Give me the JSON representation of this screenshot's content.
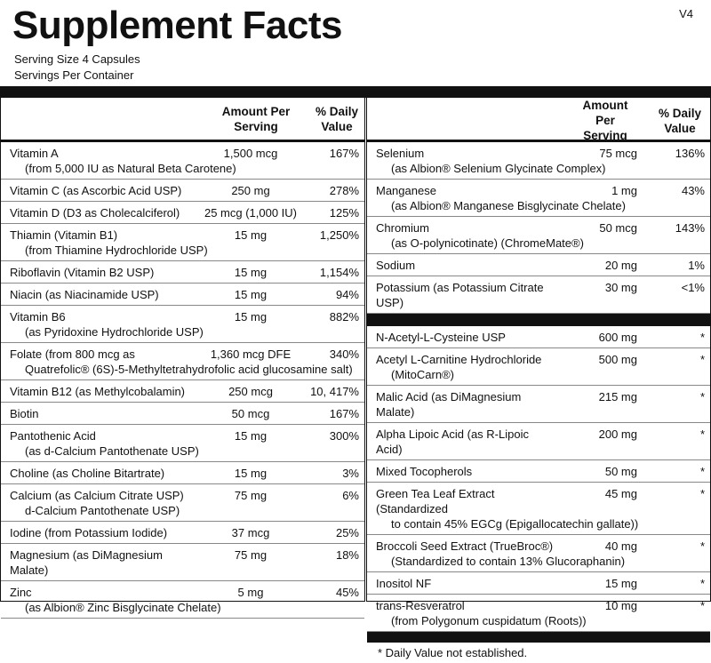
{
  "header": {
    "title": "Supplement Facts",
    "version": "V4",
    "serving_size": "Serving Size  4 Capsules",
    "servings_per_container": "Servings Per Container"
  },
  "left": {
    "columns": {
      "amount": "Amount Per Serving",
      "dv": "% Daily Value"
    },
    "rows": [
      {
        "name": "Vitamin A",
        "detail": "(from 5,000 IU as Natural Beta Carotene)",
        "amount": "1,500 mcg",
        "dv": "167%"
      },
      {
        "name": "Vitamin C (as Ascorbic Acid USP)",
        "amount": "250 mg",
        "dv": "278%"
      },
      {
        "name": "Vitamin D (D3 as Cholecalciferol)",
        "amount": "25 mcg (1,000 IU)",
        "dv": "125%"
      },
      {
        "name": "Thiamin (Vitamin B1)",
        "detail": "(from Thiamine Hydrochloride USP)",
        "amount": "15 mg",
        "dv": "1,250%"
      },
      {
        "name": "Riboflavin (Vitamin B2 USP)",
        "amount": "15 mg",
        "dv": "1,154%"
      },
      {
        "name": "Niacin (as Niacinamide USP)",
        "amount": "15 mg",
        "dv": "94%"
      },
      {
        "name": "Vitamin B6",
        "detail": "(as Pyridoxine Hydrochloride USP)",
        "amount": "15 mg",
        "dv": "882%"
      },
      {
        "name": "Folate (from 800 mcg as",
        "detail": "Quatrefolic® (6S)-5-Methyltetrahydrofolic acid glucosamine salt)",
        "amount": "1,360 mcg DFE",
        "dv": "340%"
      },
      {
        "name": "Vitamin B12 (as Methylcobalamin)",
        "amount": "250 mcg",
        "dv": "10, 417%"
      },
      {
        "name": "Biotin",
        "amount": "50 mcg",
        "dv": "167%"
      },
      {
        "name": "Pantothenic Acid",
        "detail": "(as d-Calcium Pantothenate USP)",
        "amount": "15 mg",
        "dv": "300%"
      },
      {
        "name": "Choline (as Choline Bitartrate)",
        "amount": "15 mg",
        "dv": "3%"
      },
      {
        "name": "Calcium (as Calcium Citrate USP)",
        "detail": "d-Calcium Pantothenate USP)",
        "amount": "75 mg",
        "dv": "6%"
      },
      {
        "name": "Iodine (from Potassium Iodide)",
        "amount": "37 mcg",
        "dv": "25%"
      },
      {
        "name": "Magnesium (as DiMagnesium Malate)",
        "amount": "75 mg",
        "dv": "18%"
      },
      {
        "name": "Zinc",
        "detail": "(as Albion® Zinc Bisglycinate Chelate)",
        "amount": "5 mg",
        "dv": "45%"
      }
    ]
  },
  "right": {
    "columns": {
      "amount": "Amount Per Serving",
      "dv": "% Daily Value"
    },
    "rows": [
      {
        "name": "Selenium",
        "detail": "(as Albion® Selenium Glycinate Complex)",
        "amount": "75 mcg",
        "dv": "136%"
      },
      {
        "name": "Manganese",
        "detail": "(as Albion® Manganese Bisglycinate Chelate)",
        "amount": "1 mg",
        "dv": "43%"
      },
      {
        "name": "Chromium",
        "detail": "(as O-polynicotinate) (ChromeMate®)",
        "amount": "50 mcg",
        "dv": "143%"
      },
      {
        "name": "Sodium",
        "amount": "20 mg",
        "dv": "1%"
      },
      {
        "name": "Potassium (as Potassium Citrate USP)",
        "amount": "30 mg",
        "dv": "<1%"
      }
    ],
    "other_rows": [
      {
        "name": "N-Acetyl-L-Cysteine USP",
        "amount": "600 mg",
        "dv": "*"
      },
      {
        "name": "Acetyl L-Carnitine Hydrochloride",
        "detail": "(MitoCarn®)",
        "amount": "500 mg",
        "dv": "*"
      },
      {
        "name": "Malic Acid (as DiMagnesium Malate)",
        "amount": "215 mg",
        "dv": "*"
      },
      {
        "name": "Alpha Lipoic Acid (as R-Lipoic Acid)",
        "amount": "200 mg",
        "dv": "*"
      },
      {
        "name": "Mixed Tocopherols",
        "amount": "50 mg",
        "dv": "*"
      },
      {
        "name": "Green Tea Leaf Extract (Standardized",
        "detail": "to contain 45% EGCg (Epigallocatechin gallate))",
        "amount": "45 mg",
        "dv": "*"
      },
      {
        "name": "Broccoli Seed Extract (TrueBroc®)",
        "detail": "(Standardized to contain 13% Glucoraphanin)",
        "amount": "40 mg",
        "dv": "*"
      },
      {
        "name": "Inositol NF",
        "amount": "15 mg",
        "dv": "*"
      },
      {
        "name": "trans-Resveratrol",
        "detail": "(from Polygonum cuspidatum (Roots))",
        "amount": "10 mg",
        "dv": "*"
      }
    ],
    "footnote": "*  Daily Value not established."
  }
}
